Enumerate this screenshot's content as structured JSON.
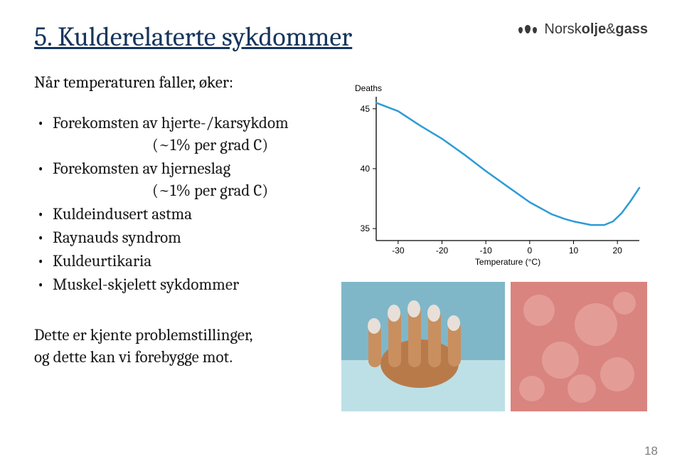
{
  "title": "5. Kulderelaterte sykdommer",
  "subtitle": "Når temperaturen faller, øker:",
  "bullets": {
    "b0": "Forekomsten av hjerte-/karsykdom",
    "b0_sub": "(~1% per grad C)",
    "b1": "Forekomsten av hjerneslag",
    "b1_sub": "(~1% per grad C)",
    "b2": "Kuldeindusert astma",
    "b3": "Raynauds syndrom",
    "b4": "Kuldeurtikaria",
    "b5": "Muskel-skjelett sykdommer"
  },
  "conclusion_l1": "Dette er kjente problemstillinger,",
  "conclusion_l2": "og dette kan vi forebygge mot.",
  "logo": {
    "part1": "Norsk",
    "part2": "olje",
    "amp": "&",
    "part3": "gass"
  },
  "chart": {
    "type": "line",
    "y_label": "Deaths",
    "x_label": "Temperature (°C)",
    "x_ticks": [
      -30,
      -20,
      -10,
      0,
      10,
      20
    ],
    "y_ticks": [
      35,
      40,
      45
    ],
    "xlim": [
      -35,
      25
    ],
    "ylim": [
      34,
      46
    ],
    "line_color": "#2e9bd6",
    "line_width": 2.5,
    "axis_color": "#000000",
    "tick_font_size": 12,
    "label_font_size": 12,
    "background_color": "#ffffff",
    "points": [
      [
        -35,
        45.5
      ],
      [
        -30,
        44.8
      ],
      [
        -25,
        43.6
      ],
      [
        -20,
        42.5
      ],
      [
        -15,
        41.2
      ],
      [
        -10,
        39.8
      ],
      [
        -5,
        38.5
      ],
      [
        0,
        37.2
      ],
      [
        5,
        36.2
      ],
      [
        8,
        35.8
      ],
      [
        10,
        35.6
      ],
      [
        14,
        35.3
      ],
      [
        17,
        35.3
      ],
      [
        19,
        35.6
      ],
      [
        21,
        36.3
      ],
      [
        23,
        37.3
      ],
      [
        25,
        38.4
      ]
    ]
  },
  "photos": {
    "p1_alt": "Raynaud hand photo",
    "p2_alt": "Cold urticaria skin photo"
  },
  "page_number": "18"
}
